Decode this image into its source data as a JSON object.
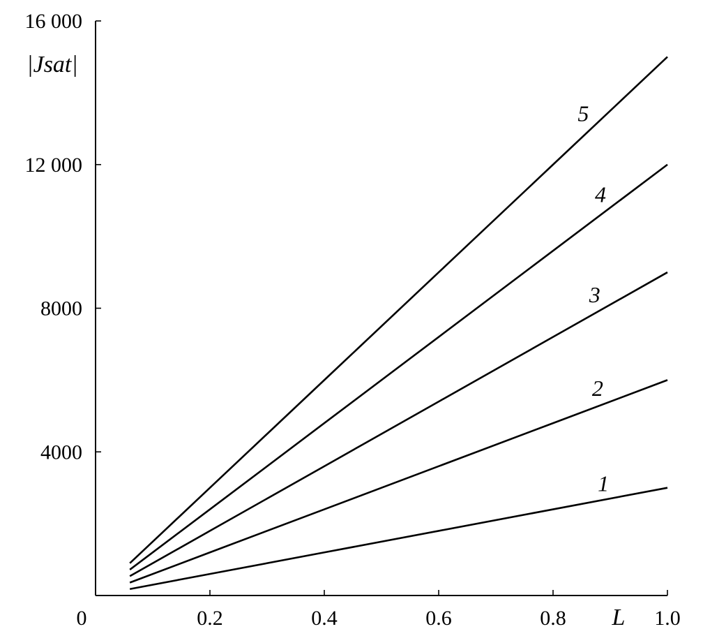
{
  "chart_data": {
    "type": "line",
    "title": "",
    "xlabel": "L",
    "ylabel": "|Jsat|",
    "xlim": [
      0,
      1.0
    ],
    "ylim": [
      0,
      16000
    ],
    "grid": false,
    "x_ticks": [
      {
        "value": 0,
        "label": "0"
      },
      {
        "value": 0.2,
        "label": "0.2"
      },
      {
        "value": 0.4,
        "label": "0.4"
      },
      {
        "value": 0.6,
        "label": "0.6"
      },
      {
        "value": 0.8,
        "label": "0.8"
      },
      {
        "value": 1.0,
        "label": "1.0"
      }
    ],
    "y_ticks": [
      {
        "value": 4000,
        "label": "4000"
      },
      {
        "value": 8000,
        "label": "8000"
      },
      {
        "value": 12000,
        "label": "12 000"
      },
      {
        "value": 16000,
        "label": "16 000"
      }
    ],
    "x": [
      0.06,
      0.2,
      0.4,
      0.6,
      0.8,
      1.0
    ],
    "series": [
      {
        "label": "1",
        "values": [
          180,
          600,
          1200,
          1800,
          2400,
          3000
        ]
      },
      {
        "label": "2",
        "values": [
          360,
          1200,
          2400,
          3600,
          4800,
          6000
        ]
      },
      {
        "label": "3",
        "values": [
          540,
          1800,
          3600,
          5400,
          7200,
          9000
        ]
      },
      {
        "label": "4",
        "values": [
          720,
          2400,
          4800,
          7200,
          9600,
          12000
        ]
      },
      {
        "label": "5",
        "values": [
          900,
          3000,
          6000,
          9000,
          12000,
          15000
        ]
      }
    ]
  }
}
